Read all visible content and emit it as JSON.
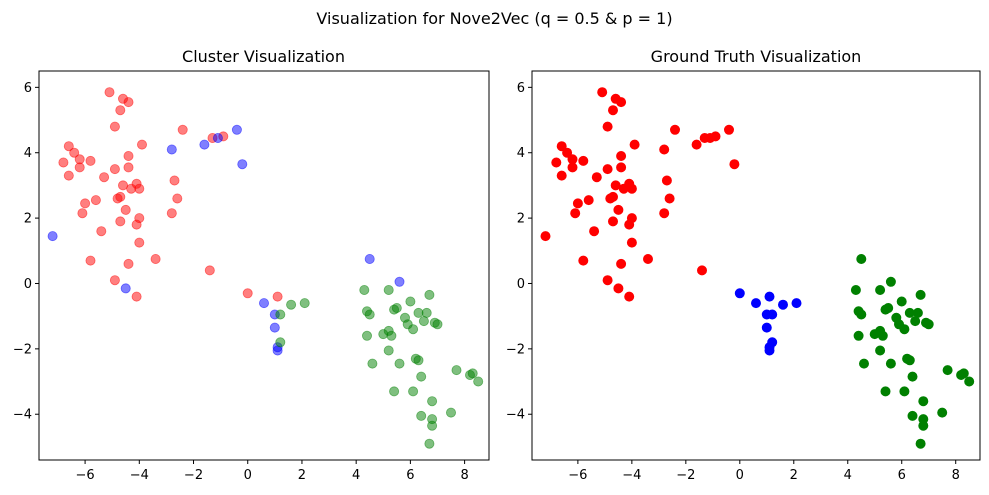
{
  "suptitle": "Visualization for Nove2Vec (q = 0.5 & p = 1)",
  "colors": {
    "red": "#ff0000",
    "blue": "#0000ff",
    "green": "#008000"
  },
  "chart_data": [
    {
      "type": "scatter",
      "title": "Cluster Visualization",
      "xlim": [
        -7.7,
        8.9
      ],
      "ylim": [
        -5.4,
        6.5
      ],
      "xticks": [
        -6,
        -4,
        -2,
        0,
        2,
        4,
        6,
        8
      ],
      "xtick_labels": [
        "−6",
        "−4",
        "−2",
        "0",
        "2",
        "4",
        "6",
        "8"
      ],
      "yticks": [
        -4,
        -2,
        0,
        2,
        4,
        6
      ],
      "ytick_labels": [
        "−4",
        "−2",
        "0",
        "2",
        "4",
        "6"
      ],
      "alpha": 0.5,
      "series": [
        {
          "name": "cluster-red",
          "color": "#ff0000",
          "points": [
            [
              -5.1,
              5.85
            ],
            [
              -4.6,
              5.65
            ],
            [
              -4.4,
              5.55
            ],
            [
              -4.7,
              5.3
            ],
            [
              -4.9,
              4.8
            ],
            [
              -2.4,
              4.7
            ],
            [
              -3.9,
              4.25
            ],
            [
              -6.6,
              4.2
            ],
            [
              -1.3,
              4.45
            ],
            [
              -0.9,
              4.5
            ],
            [
              -6.4,
              4.0
            ],
            [
              -6.8,
              3.7
            ],
            [
              -6.2,
              3.8
            ],
            [
              -5.8,
              3.75
            ],
            [
              -4.4,
              3.9
            ],
            [
              -6.6,
              3.3
            ],
            [
              -6.2,
              3.55
            ],
            [
              -4.9,
              3.5
            ],
            [
              -4.4,
              3.55
            ],
            [
              -5.3,
              3.25
            ],
            [
              -4.6,
              3.0
            ],
            [
              -4.3,
              2.9
            ],
            [
              -4.1,
              3.05
            ],
            [
              -4.0,
              2.9
            ],
            [
              -2.7,
              3.15
            ],
            [
              -2.6,
              2.6
            ],
            [
              -4.7,
              2.65
            ],
            [
              -5.6,
              2.55
            ],
            [
              -4.8,
              2.6
            ],
            [
              -6.0,
              2.45
            ],
            [
              -6.1,
              2.15
            ],
            [
              -4.5,
              2.25
            ],
            [
              -2.8,
              2.15
            ],
            [
              -4.0,
              2.0
            ],
            [
              -4.7,
              1.9
            ],
            [
              -4.1,
              1.8
            ],
            [
              -5.4,
              1.6
            ],
            [
              -4.0,
              1.25
            ],
            [
              -3.4,
              0.75
            ],
            [
              -5.8,
              0.7
            ],
            [
              -4.4,
              0.6
            ],
            [
              -1.4,
              0.4
            ],
            [
              -4.9,
              0.1
            ],
            [
              -4.1,
              -0.4
            ],
            [
              -0.0,
              -0.3
            ],
            [
              1.1,
              -0.4
            ]
          ]
        },
        {
          "name": "cluster-blue",
          "color": "#0000ff",
          "points": [
            [
              -0.4,
              4.7
            ],
            [
              -1.6,
              4.25
            ],
            [
              -2.8,
              4.1
            ],
            [
              -1.1,
              4.45
            ],
            [
              -0.2,
              3.65
            ],
            [
              -7.2,
              1.45
            ],
            [
              4.5,
              0.75
            ],
            [
              5.6,
              0.05
            ],
            [
              -4.5,
              -0.15
            ],
            [
              0.6,
              -0.6
            ],
            [
              1.0,
              -0.95
            ],
            [
              1.0,
              -1.35
            ],
            [
              1.1,
              -1.95
            ],
            [
              1.1,
              -2.05
            ]
          ]
        },
        {
          "name": "cluster-green",
          "color": "#008000",
          "points": [
            [
              1.2,
              -0.95
            ],
            [
              1.6,
              -0.65
            ],
            [
              2.1,
              -0.6
            ],
            [
              1.2,
              -1.8
            ],
            [
              4.3,
              -0.2
            ],
            [
              5.2,
              -0.2
            ],
            [
              6.0,
              -0.55
            ],
            [
              6.7,
              -0.35
            ],
            [
              4.4,
              -0.85
            ],
            [
              4.5,
              -0.95
            ],
            [
              5.4,
              -0.8
            ],
            [
              5.5,
              -0.75
            ],
            [
              6.3,
              -0.9
            ],
            [
              6.6,
              -0.9
            ],
            [
              5.8,
              -1.05
            ],
            [
              5.2,
              -1.45
            ],
            [
              5.3,
              -1.6
            ],
            [
              5.9,
              -1.25
            ],
            [
              6.1,
              -1.4
            ],
            [
              6.5,
              -1.15
            ],
            [
              6.9,
              -1.2
            ],
            [
              7.0,
              -1.25
            ],
            [
              4.4,
              -1.6
            ],
            [
              5.0,
              -1.55
            ],
            [
              5.2,
              -2.05
            ],
            [
              6.2,
              -2.3
            ],
            [
              6.3,
              -2.35
            ],
            [
              7.7,
              -2.65
            ],
            [
              4.6,
              -2.45
            ],
            [
              5.6,
              -2.45
            ],
            [
              6.4,
              -2.85
            ],
            [
              8.2,
              -2.8
            ],
            [
              8.3,
              -2.75
            ],
            [
              8.5,
              -3.0
            ],
            [
              5.4,
              -3.3
            ],
            [
              6.1,
              -3.3
            ],
            [
              6.8,
              -3.6
            ],
            [
              6.4,
              -4.05
            ],
            [
              6.8,
              -4.15
            ],
            [
              7.5,
              -3.95
            ],
            [
              6.8,
              -4.35
            ],
            [
              6.7,
              -4.9
            ]
          ]
        }
      ]
    },
    {
      "type": "scatter",
      "title": "Ground Truth Visualization",
      "xlim": [
        -7.7,
        8.9
      ],
      "ylim": [
        -5.4,
        6.5
      ],
      "xticks": [
        -6,
        -4,
        -2,
        0,
        2,
        4,
        6,
        8
      ],
      "xtick_labels": [
        "−6",
        "−4",
        "−2",
        "0",
        "2",
        "4",
        "6",
        "8"
      ],
      "yticks": [
        -4,
        -2,
        0,
        2,
        4,
        6
      ],
      "ytick_labels": [
        "−4",
        "−2",
        "0",
        "2",
        "4",
        "6"
      ],
      "alpha": 1,
      "series": [
        {
          "name": "truth-red",
          "color": "#ff0000",
          "points": [
            [
              -5.1,
              5.85
            ],
            [
              -4.6,
              5.65
            ],
            [
              -4.4,
              5.55
            ],
            [
              -4.7,
              5.3
            ],
            [
              -4.9,
              4.8
            ],
            [
              -2.4,
              4.7
            ],
            [
              -0.4,
              4.7
            ],
            [
              -1.3,
              4.45
            ],
            [
              -0.9,
              4.5
            ],
            [
              -1.1,
              4.45
            ],
            [
              -1.6,
              4.25
            ],
            [
              -3.9,
              4.25
            ],
            [
              -6.6,
              4.2
            ],
            [
              -2.8,
              4.1
            ],
            [
              -6.4,
              4.0
            ],
            [
              -6.8,
              3.7
            ],
            [
              -6.2,
              3.8
            ],
            [
              -5.8,
              3.75
            ],
            [
              -4.4,
              3.9
            ],
            [
              -0.2,
              3.65
            ],
            [
              -6.6,
              3.3
            ],
            [
              -6.2,
              3.55
            ],
            [
              -4.9,
              3.5
            ],
            [
              -4.4,
              3.55
            ],
            [
              -5.3,
              3.25
            ],
            [
              -4.6,
              3.0
            ],
            [
              -4.3,
              2.9
            ],
            [
              -4.1,
              3.05
            ],
            [
              -4.0,
              2.9
            ],
            [
              -2.7,
              3.15
            ],
            [
              -2.6,
              2.6
            ],
            [
              -4.7,
              2.65
            ],
            [
              -5.6,
              2.55
            ],
            [
              -4.8,
              2.6
            ],
            [
              -6.0,
              2.45
            ],
            [
              -6.1,
              2.15
            ],
            [
              -4.5,
              2.25
            ],
            [
              -2.8,
              2.15
            ],
            [
              -4.0,
              2.0
            ],
            [
              -4.7,
              1.9
            ],
            [
              -4.1,
              1.8
            ],
            [
              -5.4,
              1.6
            ],
            [
              -7.2,
              1.45
            ],
            [
              -4.0,
              1.25
            ],
            [
              -3.4,
              0.75
            ],
            [
              -5.8,
              0.7
            ],
            [
              -4.4,
              0.6
            ],
            [
              -1.4,
              0.4
            ],
            [
              -4.9,
              0.1
            ],
            [
              -4.5,
              -0.15
            ],
            [
              -4.1,
              -0.4
            ]
          ]
        },
        {
          "name": "truth-blue",
          "color": "#0000ff",
          "points": [
            [
              -0.0,
              -0.3
            ],
            [
              1.1,
              -0.4
            ],
            [
              0.6,
              -0.6
            ],
            [
              1.6,
              -0.65
            ],
            [
              2.1,
              -0.6
            ],
            [
              1.0,
              -0.95
            ],
            [
              1.2,
              -0.95
            ],
            [
              1.0,
              -1.35
            ],
            [
              1.2,
              -1.8
            ],
            [
              1.1,
              -1.95
            ],
            [
              1.1,
              -2.05
            ]
          ]
        },
        {
          "name": "truth-green",
          "color": "#008000",
          "points": [
            [
              4.5,
              0.75
            ],
            [
              5.6,
              0.05
            ],
            [
              4.3,
              -0.2
            ],
            [
              5.2,
              -0.2
            ],
            [
              6.0,
              -0.55
            ],
            [
              6.7,
              -0.35
            ],
            [
              4.4,
              -0.85
            ],
            [
              4.5,
              -0.95
            ],
            [
              5.4,
              -0.8
            ],
            [
              5.5,
              -0.75
            ],
            [
              6.3,
              -0.9
            ],
            [
              6.6,
              -0.9
            ],
            [
              5.8,
              -1.05
            ],
            [
              5.2,
              -1.45
            ],
            [
              5.3,
              -1.6
            ],
            [
              5.9,
              -1.25
            ],
            [
              6.1,
              -1.4
            ],
            [
              6.5,
              -1.15
            ],
            [
              6.9,
              -1.2
            ],
            [
              7.0,
              -1.25
            ],
            [
              4.4,
              -1.6
            ],
            [
              5.0,
              -1.55
            ],
            [
              5.2,
              -2.05
            ],
            [
              6.2,
              -2.3
            ],
            [
              6.3,
              -2.35
            ],
            [
              7.7,
              -2.65
            ],
            [
              4.6,
              -2.45
            ],
            [
              5.6,
              -2.45
            ],
            [
              6.4,
              -2.85
            ],
            [
              8.2,
              -2.8
            ],
            [
              8.3,
              -2.75
            ],
            [
              8.5,
              -3.0
            ],
            [
              5.4,
              -3.3
            ],
            [
              6.1,
              -3.3
            ],
            [
              6.8,
              -3.6
            ],
            [
              6.4,
              -4.05
            ],
            [
              6.8,
              -4.15
            ],
            [
              7.5,
              -3.95
            ],
            [
              6.8,
              -4.35
            ],
            [
              6.7,
              -4.9
            ]
          ]
        }
      ]
    }
  ]
}
